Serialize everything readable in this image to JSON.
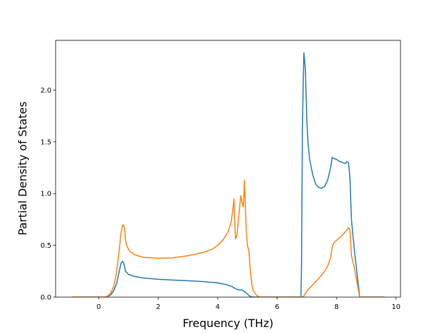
{
  "chart_data": {
    "type": "line",
    "title": "",
    "xlabel": "Frequency (THz)",
    "ylabel": "Partial Density of States",
    "xlim": [
      -1.45,
      10.15
    ],
    "ylim": [
      0.0,
      2.48
    ],
    "xticks": [
      0,
      2,
      4,
      6,
      8,
      10
    ],
    "xtick_labels": [
      "0",
      "2",
      "4",
      "6",
      "8",
      "10"
    ],
    "yticks": [
      0.0,
      0.5,
      1.0,
      1.5,
      2.0
    ],
    "ytick_labels": [
      "0.0",
      "0.5",
      "1.0",
      "1.5",
      "2.0"
    ],
    "grid": false,
    "legend": "none",
    "series": [
      {
        "color": "#1f77b4",
        "points": [
          [
            -0.9,
            0.0
          ],
          [
            0.2,
            0.0
          ],
          [
            0.3,
            0.005
          ],
          [
            0.4,
            0.02
          ],
          [
            0.5,
            0.06
          ],
          [
            0.6,
            0.13
          ],
          [
            0.7,
            0.26
          ],
          [
            0.75,
            0.33
          ],
          [
            0.8,
            0.345
          ],
          [
            0.85,
            0.32
          ],
          [
            0.9,
            0.25
          ],
          [
            1.0,
            0.22
          ],
          [
            1.2,
            0.2
          ],
          [
            1.5,
            0.185
          ],
          [
            2.0,
            0.172
          ],
          [
            2.5,
            0.165
          ],
          [
            3.0,
            0.158
          ],
          [
            3.5,
            0.15
          ],
          [
            4.0,
            0.138
          ],
          [
            4.3,
            0.12
          ],
          [
            4.5,
            0.1
          ],
          [
            4.6,
            0.08
          ],
          [
            4.7,
            0.07
          ],
          [
            4.8,
            0.07
          ],
          [
            4.9,
            0.055
          ],
          [
            5.0,
            0.03
          ],
          [
            5.1,
            0.005
          ],
          [
            5.2,
            0.0
          ],
          [
            6.8,
            0.0
          ],
          [
            6.82,
            0.3
          ],
          [
            6.85,
            1.6
          ],
          [
            6.88,
            2.1
          ],
          [
            6.9,
            2.36
          ],
          [
            6.95,
            2.2
          ],
          [
            7.0,
            1.7
          ],
          [
            7.05,
            1.45
          ],
          [
            7.1,
            1.32
          ],
          [
            7.2,
            1.18
          ],
          [
            7.3,
            1.09
          ],
          [
            7.4,
            1.06
          ],
          [
            7.5,
            1.05
          ],
          [
            7.6,
            1.07
          ],
          [
            7.7,
            1.13
          ],
          [
            7.8,
            1.25
          ],
          [
            7.85,
            1.35
          ],
          [
            7.9,
            1.34
          ],
          [
            8.0,
            1.33
          ],
          [
            8.1,
            1.31
          ],
          [
            8.2,
            1.3
          ],
          [
            8.3,
            1.29
          ],
          [
            8.35,
            1.31
          ],
          [
            8.4,
            1.3
          ],
          [
            8.45,
            1.15
          ],
          [
            8.5,
            0.75
          ],
          [
            8.6,
            0.45
          ],
          [
            8.7,
            0.2
          ],
          [
            8.78,
            0.0
          ],
          [
            9.6,
            0.0
          ]
        ]
      },
      {
        "color": "#ff7f0e",
        "points": [
          [
            -0.9,
            0.0
          ],
          [
            0.2,
            0.0
          ],
          [
            0.3,
            0.01
          ],
          [
            0.4,
            0.04
          ],
          [
            0.5,
            0.1
          ],
          [
            0.6,
            0.24
          ],
          [
            0.7,
            0.48
          ],
          [
            0.75,
            0.62
          ],
          [
            0.8,
            0.69
          ],
          [
            0.83,
            0.7
          ],
          [
            0.87,
            0.66
          ],
          [
            0.9,
            0.55
          ],
          [
            0.95,
            0.49
          ],
          [
            1.05,
            0.44
          ],
          [
            1.2,
            0.41
          ],
          [
            1.5,
            0.385
          ],
          [
            2.0,
            0.375
          ],
          [
            2.5,
            0.38
          ],
          [
            3.0,
            0.4
          ],
          [
            3.5,
            0.43
          ],
          [
            3.8,
            0.46
          ],
          [
            4.0,
            0.5
          ],
          [
            4.2,
            0.56
          ],
          [
            4.35,
            0.63
          ],
          [
            4.45,
            0.72
          ],
          [
            4.5,
            0.82
          ],
          [
            4.55,
            0.95
          ],
          [
            4.58,
            0.7
          ],
          [
            4.6,
            0.56
          ],
          [
            4.65,
            0.6
          ],
          [
            4.7,
            0.75
          ],
          [
            4.75,
            0.9
          ],
          [
            4.78,
            0.98
          ],
          [
            4.82,
            0.92
          ],
          [
            4.86,
            0.87
          ],
          [
            4.88,
            0.95
          ],
          [
            4.9,
            1.13
          ],
          [
            4.93,
            0.9
          ],
          [
            4.96,
            0.65
          ],
          [
            5.0,
            0.5
          ],
          [
            5.05,
            0.45
          ],
          [
            5.1,
            0.25
          ],
          [
            5.15,
            0.12
          ],
          [
            5.2,
            0.06
          ],
          [
            5.3,
            0.02
          ],
          [
            5.4,
            0.0
          ],
          [
            6.85,
            0.0
          ],
          [
            6.9,
            0.01
          ],
          [
            7.0,
            0.06
          ],
          [
            7.2,
            0.12
          ],
          [
            7.4,
            0.18
          ],
          [
            7.6,
            0.25
          ],
          [
            7.7,
            0.3
          ],
          [
            7.8,
            0.38
          ],
          [
            7.85,
            0.48
          ],
          [
            7.9,
            0.52
          ],
          [
            8.0,
            0.55
          ],
          [
            8.2,
            0.6
          ],
          [
            8.35,
            0.65
          ],
          [
            8.4,
            0.67
          ],
          [
            8.45,
            0.65
          ],
          [
            8.5,
            0.4
          ],
          [
            8.6,
            0.28
          ],
          [
            8.7,
            0.12
          ],
          [
            8.78,
            0.0
          ],
          [
            9.6,
            0.0
          ]
        ]
      }
    ]
  }
}
